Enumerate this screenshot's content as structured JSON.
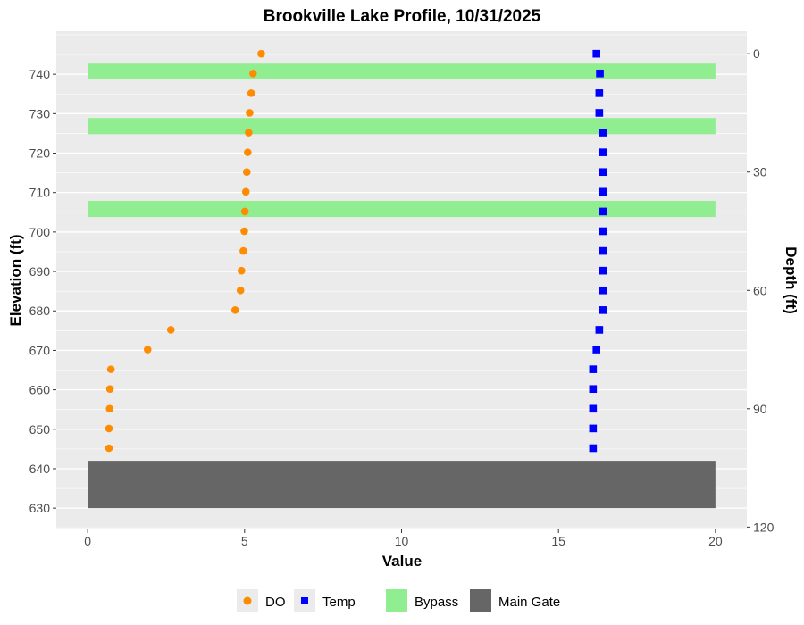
{
  "chart_data": {
    "type": "scatter",
    "title": "Brookville Lake Profile, 10/31/2025",
    "xlabel": "Value",
    "ylabel": "Elevation (ft)",
    "y2label": "Depth (ft)",
    "xlim": [
      -1,
      21
    ],
    "ylim": [
      624.6,
      750.9
    ],
    "x_ticks": [
      0,
      5,
      10,
      15,
      20
    ],
    "y_ticks": [
      630,
      640,
      650,
      660,
      670,
      680,
      690,
      700,
      710,
      720,
      730,
      740
    ],
    "y2_ticks": [
      0,
      30,
      60,
      90,
      120
    ],
    "surface_elevation": 745.2,
    "grid": true,
    "series": [
      {
        "name": "DO",
        "shape": "circle",
        "color": "#FF8C00",
        "elevation": [
          745.2,
          740.2,
          735.2,
          730.2,
          725.2,
          720.2,
          715.2,
          710.2,
          705.2,
          700.2,
          695.2,
          690.2,
          685.2,
          680.2,
          675.2,
          670.2,
          665.2,
          660.2,
          655.2,
          650.2,
          645.2
        ],
        "values": [
          5.53,
          5.27,
          5.21,
          5.16,
          5.13,
          5.1,
          5.07,
          5.04,
          5.01,
          4.99,
          4.96,
          4.9,
          4.87,
          4.7,
          2.65,
          1.91,
          0.74,
          0.71,
          0.7,
          0.68,
          0.68
        ]
      },
      {
        "name": "Temp",
        "shape": "square",
        "color": "#0000FF",
        "elevation": [
          745.2,
          740.2,
          735.2,
          730.2,
          725.2,
          720.2,
          715.2,
          710.2,
          705.2,
          700.2,
          695.2,
          690.2,
          685.2,
          680.2,
          675.2,
          670.2,
          665.2,
          660.2,
          655.2,
          650.2,
          645.2
        ],
        "values": [
          16.21,
          16.32,
          16.3,
          16.3,
          16.41,
          16.41,
          16.41,
          16.41,
          16.41,
          16.41,
          16.41,
          16.41,
          16.41,
          16.41,
          16.3,
          16.21,
          16.1,
          16.1,
          16.1,
          16.1,
          16.1
        ]
      }
    ],
    "bands": [
      {
        "name": "Bypass",
        "color": "#90EE90",
        "ranges": [
          [
            738.9,
            742.7
          ],
          [
            724.8,
            728.9
          ],
          [
            703.8,
            707.9
          ]
        ],
        "x": [
          0,
          20
        ]
      },
      {
        "name": "Main Gate",
        "color": "#666666",
        "ranges": [
          [
            630,
            642
          ]
        ],
        "x": [
          0,
          20
        ]
      }
    ],
    "legend": {
      "placement": "bottom",
      "entries": [
        "DO",
        "Temp",
        "Bypass",
        "Main Gate"
      ]
    }
  }
}
